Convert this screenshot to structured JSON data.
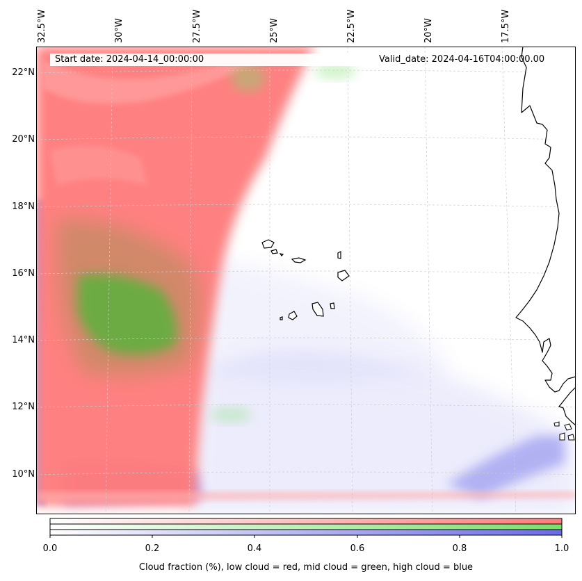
{
  "map": {
    "header": {
      "start_date": "Start date: 2024-04-14_00:00:00",
      "valid_date": "Valid_date: 2024-04-16T04:00:00.00"
    },
    "longitude_labels": [
      "32.5°W",
      "30°W",
      "27.5°W",
      "25°W",
      "22.5°W",
      "20°W",
      "17.5°W"
    ],
    "latitude_labels": [
      "22°N",
      "20°N",
      "18°N",
      "16°N",
      "14°N",
      "12°N",
      "10°N"
    ],
    "colors": {
      "low_cloud": "#ff7a7a",
      "mid_cloud": "#7adf6a",
      "high_cloud": "#6a6ae8",
      "coastline": "#000000",
      "gridline": "#cccccc"
    }
  },
  "colorbar": {
    "ticks": [
      "0.0",
      "0.2",
      "0.4",
      "0.6",
      "0.8",
      "1.0"
    ],
    "label": "Cloud fraction (%), low cloud = red, mid cloud = green, high cloud = blue"
  }
}
